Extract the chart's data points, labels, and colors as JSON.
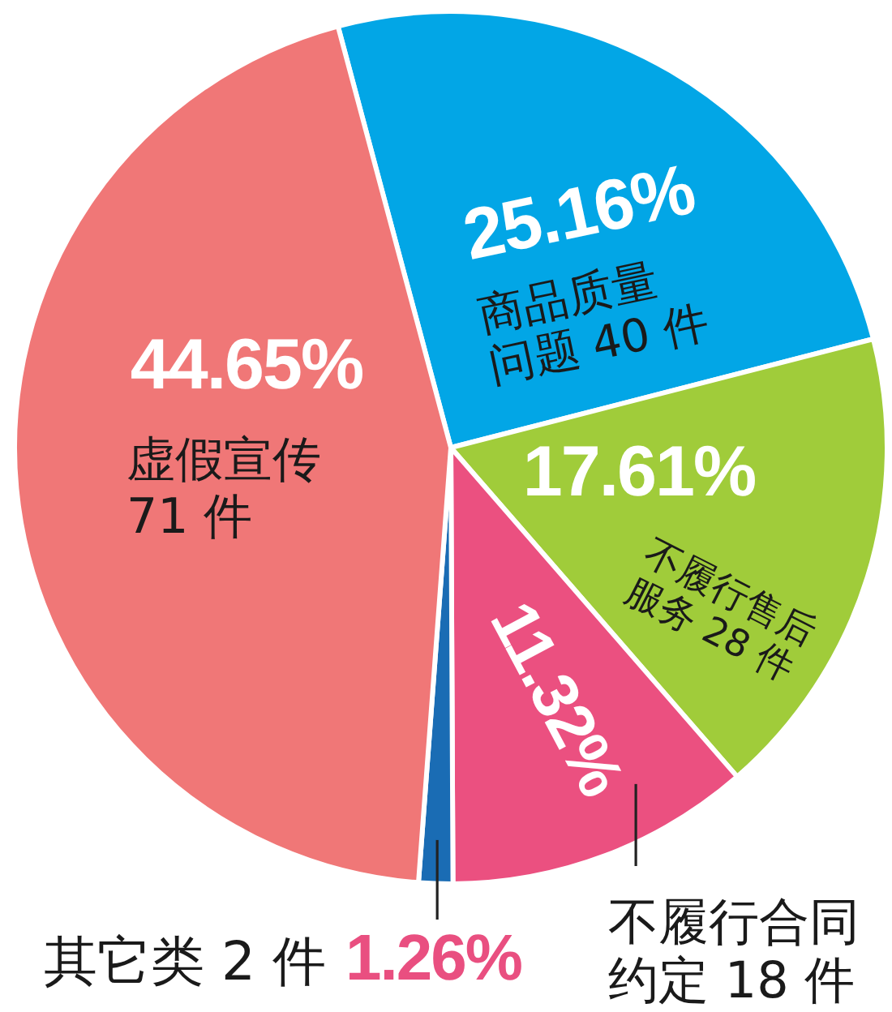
{
  "chart_data": {
    "type": "pie",
    "categories": [
      "商品质量问题 40 件",
      "不履行售后服务 28 件",
      "不履行合同约定 18 件",
      "其它类 2 件",
      "虚假宣传 71 件"
    ],
    "values": [
      25.16,
      17.61,
      11.32,
      1.26,
      44.65
    ],
    "colors": [
      "#02a6e6",
      "#a0cc3a",
      "#eb5080",
      "#1a6cb4",
      "#f07777"
    ],
    "value_labels": [
      "25.16%",
      "17.61%",
      "11.32%",
      "1.26%",
      "44.65%"
    ]
  }
}
